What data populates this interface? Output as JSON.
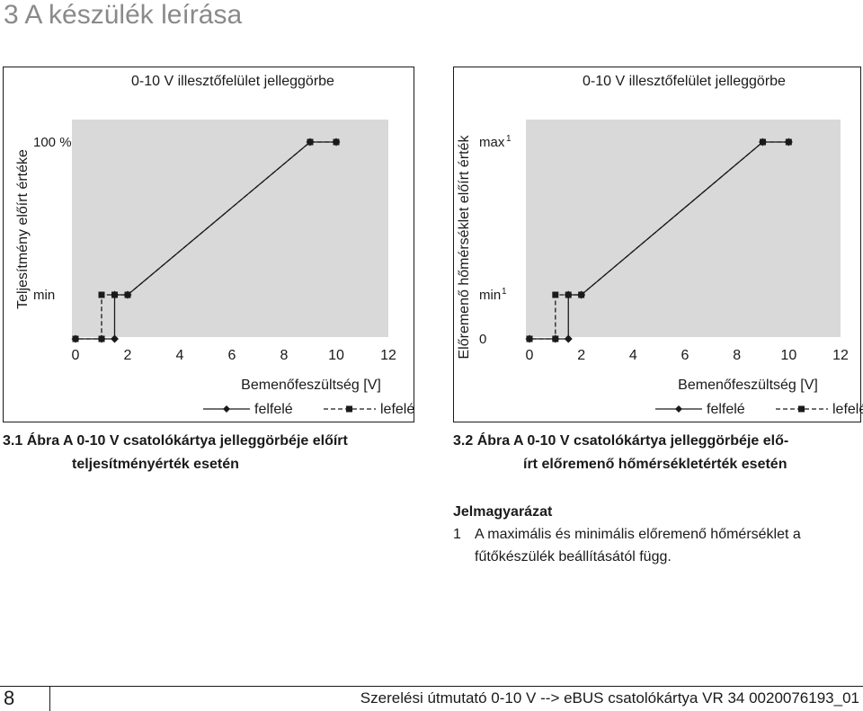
{
  "page": {
    "heading": "3 A készülék leírása",
    "page_number": "8",
    "footer_text": "Szerelési útmutató 0-10 V --> eBUS csatolókártya VR 34 0020076193_01"
  },
  "chart_data": [
    {
      "type": "line",
      "title": "0-10 V illesztőfelület jelleggörbe",
      "xlabel": "Bemenőfeszültség [V]",
      "ylabel": "Teljesítmény előírt értéke",
      "x_ticks": [
        "0",
        "2",
        "4",
        "6",
        "8",
        "10",
        "12"
      ],
      "y_ticks": [
        "min",
        "100 %"
      ],
      "xlim": [
        0,
        12
      ],
      "grid": false,
      "legend_position": "bottom-right",
      "series": [
        {
          "name": "felfelé",
          "style": "solid",
          "marker": "diamond",
          "points": [
            [
              0,
              0
            ],
            [
              1,
              0
            ],
            [
              1.5,
              0
            ],
            [
              1.5,
              "min"
            ],
            [
              2,
              "min"
            ],
            [
              9,
              "max"
            ],
            [
              10,
              "max"
            ]
          ]
        },
        {
          "name": "lefelé",
          "style": "dashed",
          "marker": "square",
          "points": [
            [
              10,
              "max"
            ],
            [
              9,
              "max"
            ],
            [
              2,
              "min"
            ],
            [
              1.5,
              "min"
            ],
            [
              1,
              "min"
            ],
            [
              1,
              0
            ],
            [
              0,
              0
            ]
          ]
        }
      ],
      "caption": [
        "3.1 Ábra A 0-10 V csatolókártya jelleggörbéje előírt",
        "teljesítményérték esetén"
      ]
    },
    {
      "type": "line",
      "title": "0-10 V illesztőfelület jelleggörbe",
      "xlabel": "Bemenőfeszültség [V]",
      "ylabel": "Előremenő hőmérséklet előírt érték",
      "x_ticks": [
        "0",
        "2",
        "4",
        "6",
        "8",
        "10",
        "12"
      ],
      "y_ticks": [
        "0",
        "min",
        "max"
      ],
      "y_tick_superscript": "1",
      "xlim": [
        0,
        12
      ],
      "grid": false,
      "legend_position": "bottom-right",
      "series": [
        {
          "name": "felfelé",
          "style": "solid",
          "marker": "diamond",
          "points": [
            [
              0,
              0
            ],
            [
              1,
              0
            ],
            [
              1.5,
              0
            ],
            [
              1.5,
              "min"
            ],
            [
              2,
              "min"
            ],
            [
              9,
              "max"
            ],
            [
              10,
              "max"
            ]
          ]
        },
        {
          "name": "lefelé",
          "style": "dashed",
          "marker": "square",
          "points": [
            [
              10,
              "max"
            ],
            [
              9,
              "max"
            ],
            [
              2,
              "min"
            ],
            [
              1.5,
              "min"
            ],
            [
              1,
              "min"
            ],
            [
              1,
              0
            ],
            [
              0,
              0
            ]
          ]
        }
      ],
      "caption": [
        "3.2 Ábra A 0-10 V csatolókártya jelleggörbéje elő-",
        "írt előremenő hőmérsékletérték esetén"
      ]
    }
  ],
  "legend": {
    "title": "Jelmagyarázat",
    "item_number": "1",
    "item_lines": [
      "A maximális és minimális előremenő hőmérséklet a",
      "fűtőkészülék beállításától függ."
    ]
  },
  "colors": {
    "plot_bg": "#d9d9d9",
    "line": "#1a1a1a",
    "heading": "#8a8a8a"
  }
}
